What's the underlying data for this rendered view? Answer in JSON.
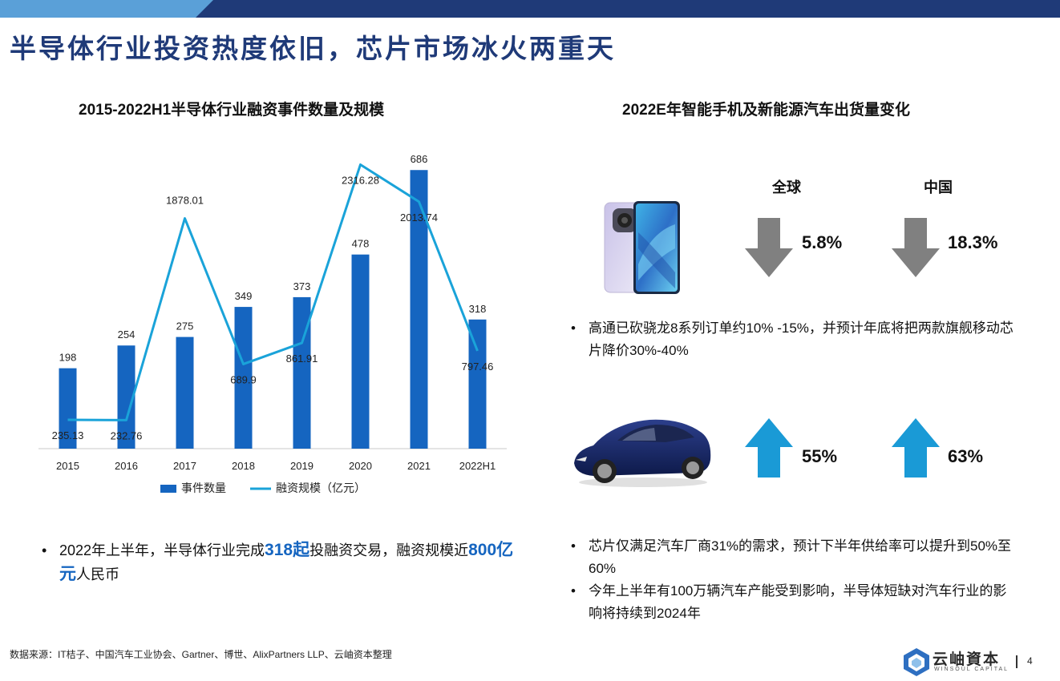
{
  "page_title": "半导体行业投资热度依旧，芯片市场冰火两重天",
  "left": {
    "section_title": "2015-2022H1半导体行业融资事件数量及规模",
    "bullet": {
      "part1": "2022年上半年，半导体行业完成",
      "hl1": "318起",
      "part2": "投融资交易，融资规模近",
      "hl2": "800亿元",
      "part3": "人民币"
    }
  },
  "chart_data": {
    "type": "bar",
    "categories": [
      "2015",
      "2016",
      "2017",
      "2018",
      "2019",
      "2020",
      "2021",
      "2022H1"
    ],
    "series": [
      {
        "name": "事件数量",
        "kind": "bar",
        "color": "#1565c0",
        "values": [
          198,
          254,
          275,
          349,
          373,
          478,
          686,
          318
        ],
        "labels": [
          "198",
          "254",
          "275",
          "349",
          "373",
          "478",
          "686",
          "318"
        ]
      },
      {
        "name": "融资规模（亿元）",
        "kind": "line",
        "color": "#1aa3d9",
        "values": [
          235.13,
          232.76,
          1878.01,
          689.9,
          861.91,
          2316.28,
          2013.74,
          797.46
        ],
        "labels": [
          "235.13",
          "232.76",
          "1878.01",
          "689.9",
          "861.91",
          "2316.28",
          "2013.74",
          "797.46"
        ]
      }
    ],
    "legend_position": "bottom",
    "grid": false
  },
  "right": {
    "section_title": "2022E年智能手机及新能源汽车出货量变化",
    "global_label": "全球",
    "china_label": "中国",
    "phone": {
      "global_pct": "5.8%",
      "china_pct": "18.3%",
      "direction": "down",
      "arrow_color": "#808080"
    },
    "car": {
      "global_pct": "55%",
      "china_pct": "63%",
      "direction": "up",
      "arrow_color": "#1a9ad6"
    },
    "bullet_phone": "高通已砍骁龙8系列订单约10% -15%，并预计年底将把两款旗舰移动芯片降价30%-40%",
    "bullet_car_1": "芯片仅满足汽车厂商31%的需求，预计下半年供给率可以提升到50%至60%",
    "bullet_car_2": "今年上半年有100万辆汽车产能受到影响，半导体短缺对汽车行业的影响将持续到2024年"
  },
  "footer": {
    "source": "数据来源：IT桔子、中国汽车工业协会、Gartner、博世、AlixPartners LLP、云岫资本整理",
    "logo_cn": "云岫資本",
    "logo_en": "WINSOUL CAPITAL",
    "page_number": "4"
  },
  "bullet_symbol": "•"
}
